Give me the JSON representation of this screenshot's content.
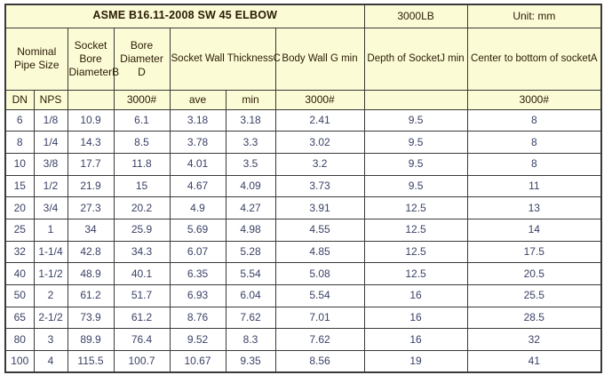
{
  "table": {
    "title": "ASME B16.11-2008 SW 45 ELBOW",
    "pressure_class": "3000LB",
    "unit_label": "Unit: mm",
    "column_groups": {
      "nominal_pipe_size": "Nominal Pipe Size",
      "socket_bore_diameter": "Socket Bore DiameterB",
      "bore_diameter": "Bore Diameter D",
      "socket_wall_thickness": "Socket Wall ThicknessC",
      "body_wall": "Body Wall G min",
      "depth_of_socket": "Depth of SocketJ min",
      "center_to_bottom": "Center to bottom of socketA"
    },
    "subheader": [
      "DN",
      "NPS",
      "",
      "3000#",
      "ave",
      "min",
      "3000#",
      "",
      "3000#"
    ],
    "rows": [
      [
        "6",
        "1/8",
        "10.9",
        "6.1",
        "3.18",
        "3.18",
        "2.41",
        "9.5",
        "8"
      ],
      [
        "8",
        "1/4",
        "14.3",
        "8.5",
        "3.78",
        "3.3",
        "3.02",
        "9.5",
        "8"
      ],
      [
        "10",
        "3/8",
        "17.7",
        "11.8",
        "4.01",
        "3.5",
        "3.2",
        "9.5",
        "8"
      ],
      [
        "15",
        "1/2",
        "21.9",
        "15",
        "4.67",
        "4.09",
        "3.73",
        "9.5",
        "11"
      ],
      [
        "20",
        "3/4",
        "27.3",
        "20.2",
        "4.9",
        "4.27",
        "3.91",
        "12.5",
        "13"
      ],
      [
        "25",
        "1",
        "34",
        "25.9",
        "5.69",
        "4.98",
        "4.55",
        "12.5",
        "14"
      ],
      [
        "32",
        "1-1/4",
        "42.8",
        "34.3",
        "6.07",
        "5.28",
        "4.85",
        "12.5",
        "17.5"
      ],
      [
        "40",
        "1-1/2",
        "48.9",
        "40.1",
        "6.35",
        "5.54",
        "5.08",
        "12.5",
        "20.5"
      ],
      [
        "50",
        "2",
        "61.2",
        "51.7",
        "6.93",
        "6.04",
        "5.54",
        "16",
        "25.5"
      ],
      [
        "65",
        "2-1/2",
        "73.9",
        "61.2",
        "8.76",
        "7.62",
        "7.01",
        "16",
        "28.5"
      ],
      [
        "80",
        "3",
        "89.9",
        "76.4",
        "9.52",
        "8.3",
        "7.62",
        "16",
        "32"
      ],
      [
        "100",
        "4",
        "115.5",
        "100.7",
        "10.67",
        "9.35",
        "8.56",
        "19",
        "41"
      ]
    ],
    "colors": {
      "header_bg": "#fbfbd5",
      "data_bg": "#ffffff",
      "border": "#3a3a3a",
      "header_text": "#2b1b06",
      "data_text": "#3a4266"
    }
  }
}
